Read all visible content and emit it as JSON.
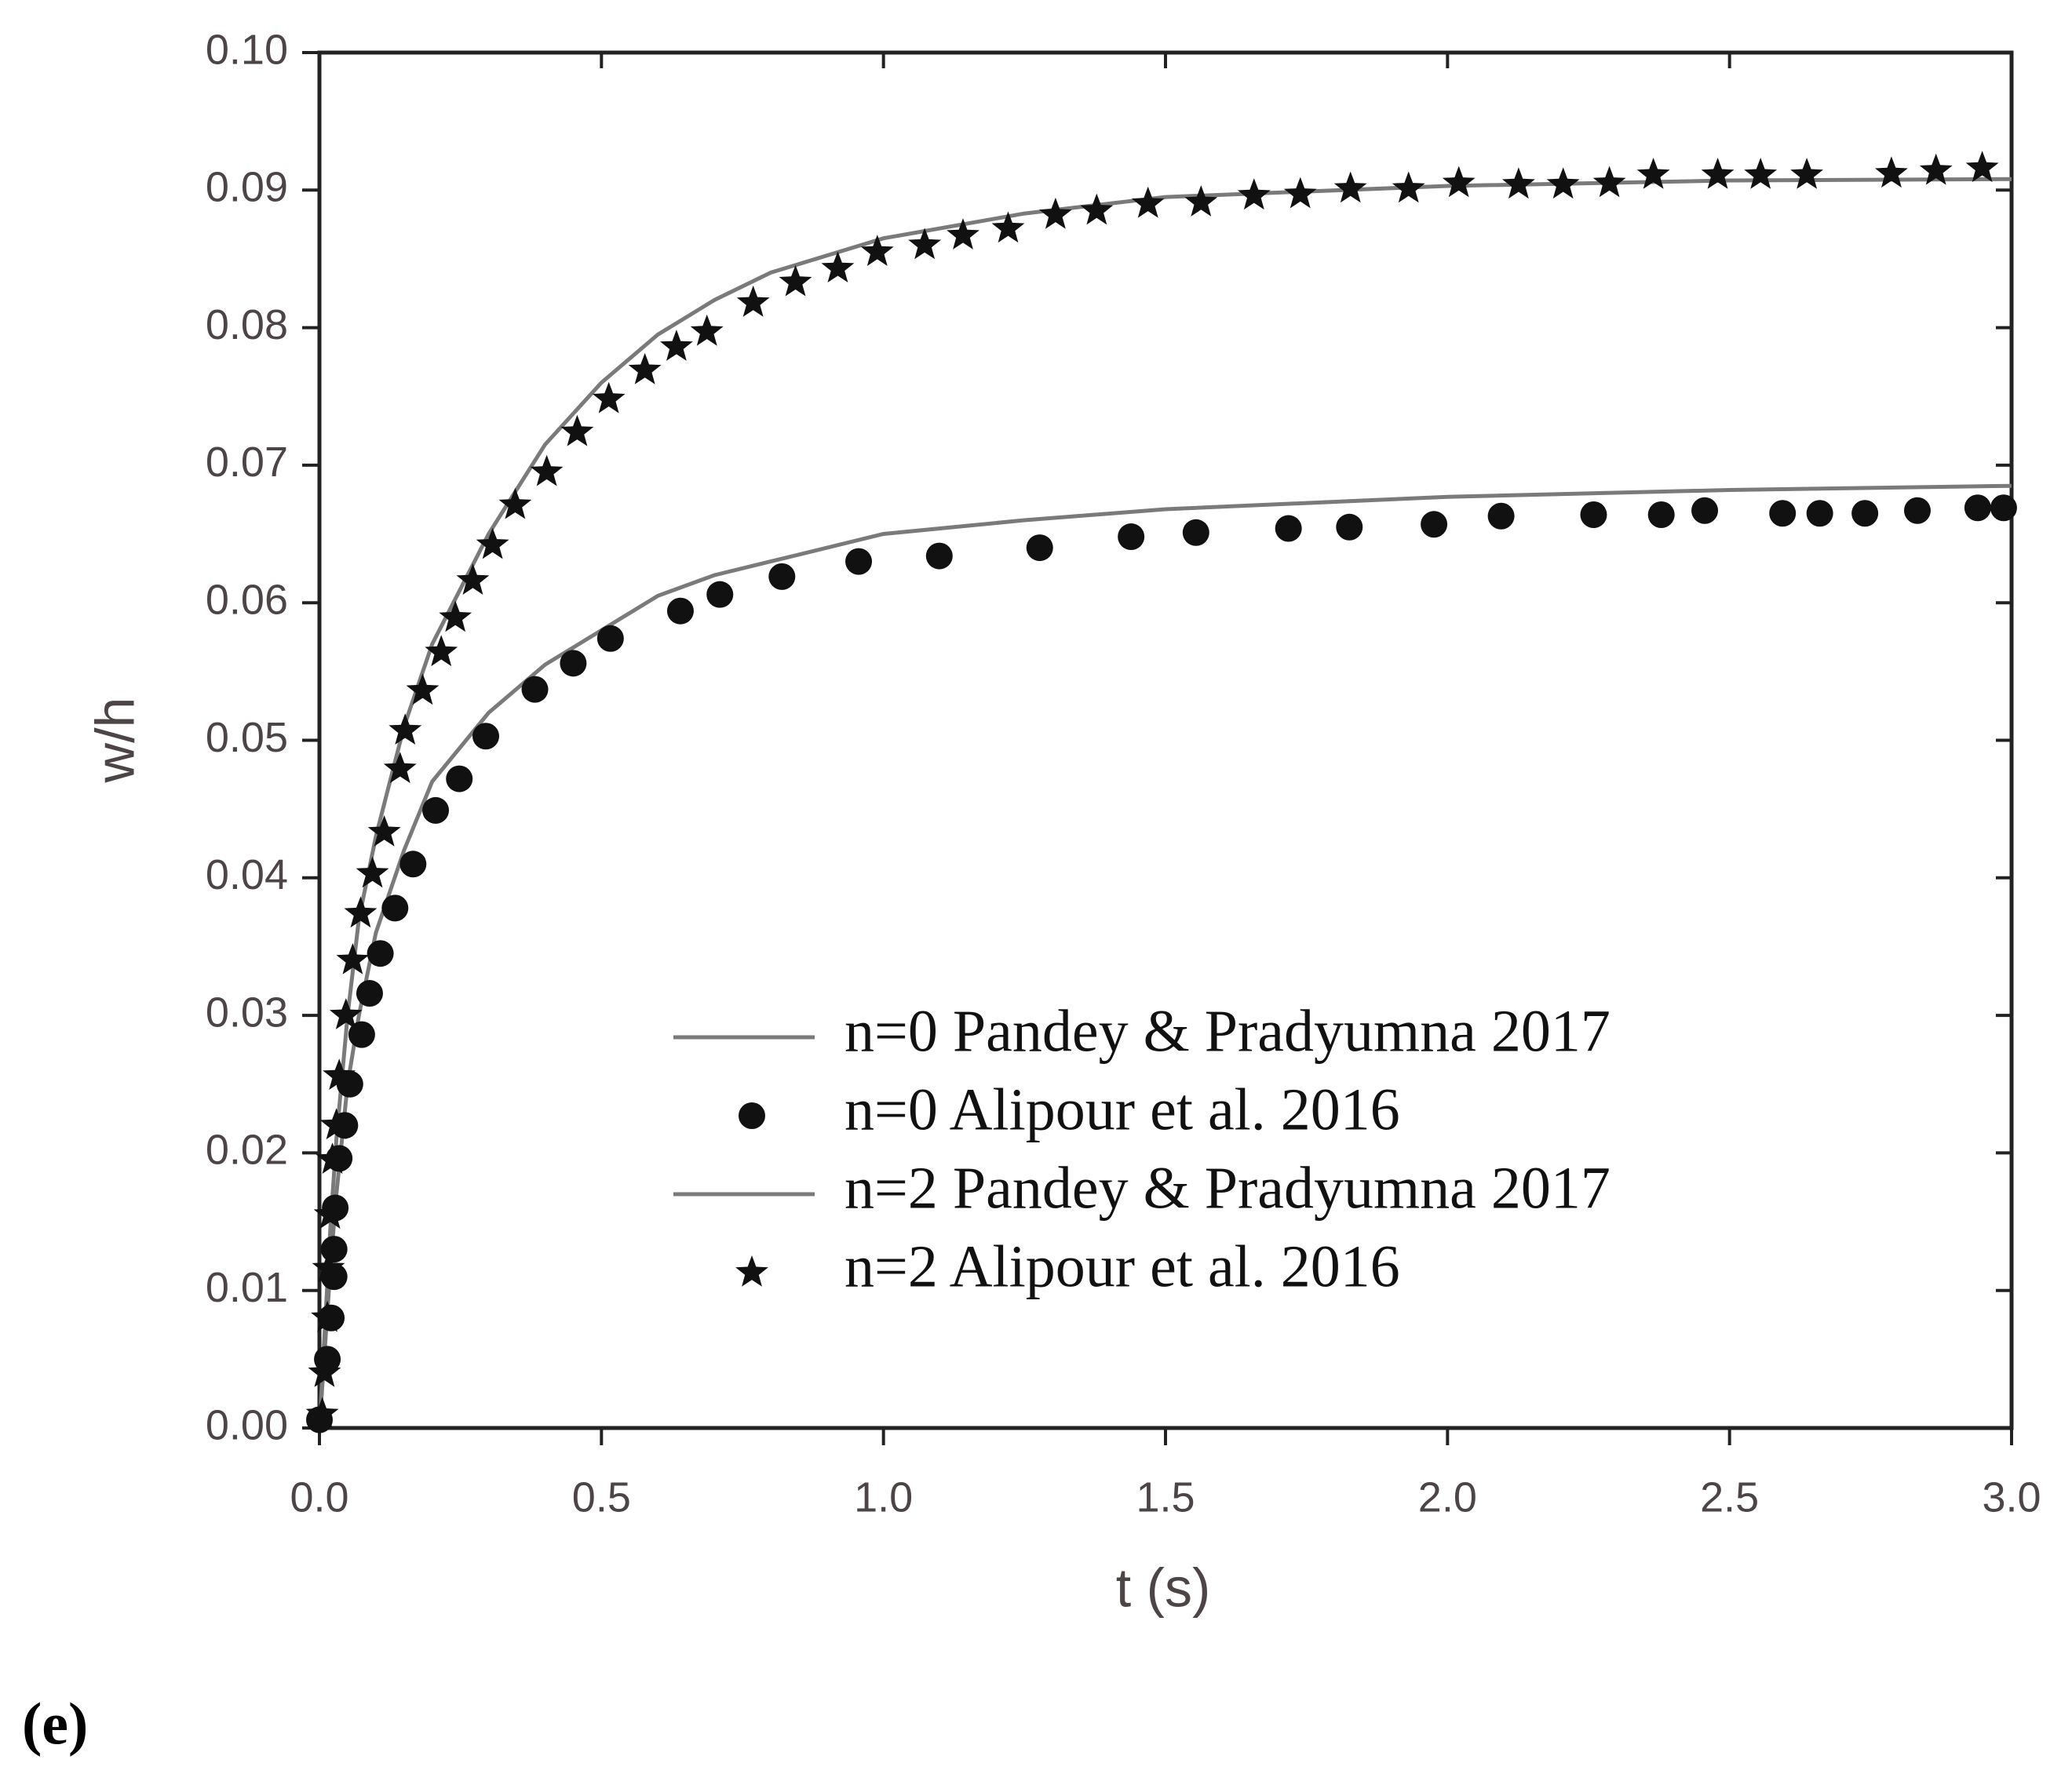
{
  "chart_data": {
    "type": "line",
    "xlabel": "t (s)",
    "ylabel": "w/h",
    "panel_label": "(e)",
    "xlim": [
      0,
      3.0
    ],
    "ylim": [
      0,
      0.1
    ],
    "xticks": [
      {
        "value": 0,
        "label": "0.0"
      },
      0.5,
      {
        "value": 1,
        "label": "1.0"
      },
      1.5,
      {
        "value": 2,
        "label": "2.0"
      },
      2.5,
      {
        "value": 3,
        "label": "3.0"
      }
    ],
    "yticks": [
      {
        "value": 0,
        "label": "0.00"
      },
      0.01,
      0.02,
      0.03,
      0.04,
      0.05,
      0.06,
      0.07,
      0.08,
      0.09,
      {
        "value": 0.1,
        "label": "0.10"
      }
    ],
    "legend": "lower right",
    "series": [
      {
        "name": "n=0 Pandey & Pradyumna 2017",
        "marker": "line",
        "color": "#7a7a7a",
        "x": [
          0,
          0.02,
          0.03,
          0.05,
          0.07,
          0.1,
          0.15,
          0.2,
          0.3,
          0.4,
          0.5,
          0.6,
          0.7,
          0.8,
          1.0,
          1.25,
          1.5,
          2.0,
          2.5,
          3.0
        ],
        "values": [
          0,
          0.012,
          0.017,
          0.025,
          0.03,
          0.036,
          0.042,
          0.047,
          0.052,
          0.0555,
          0.058,
          0.0605,
          0.062,
          0.063,
          0.065,
          0.066,
          0.0668,
          0.0677,
          0.0682,
          0.0685
        ]
      },
      {
        "name": "n=0 Alipour et al. 2016",
        "marker": "circle",
        "color": "#111111",
        "x": [
          0,
          0.014,
          0.021,
          0.026,
          0.026,
          0.028,
          0.035,
          0.045,
          0.054,
          0.075,
          0.089,
          0.108,
          0.134,
          0.166,
          0.206,
          0.248,
          0.295,
          0.382,
          0.45,
          0.516,
          0.64,
          0.71,
          0.82,
          0.956,
          1.099,
          1.277,
          1.439,
          1.554,
          1.718,
          1.826,
          1.976,
          2.095,
          2.259,
          2.379,
          2.456,
          2.594,
          2.66,
          2.74,
          2.833,
          2.94,
          2.986
        ],
        "values": [
          0.0006,
          0.005,
          0.008,
          0.011,
          0.013,
          0.016,
          0.0196,
          0.022,
          0.025,
          0.0286,
          0.0316,
          0.0345,
          0.0378,
          0.041,
          0.0449,
          0.0472,
          0.0503,
          0.0537,
          0.0556,
          0.0574,
          0.0594,
          0.0606,
          0.0619,
          0.063,
          0.0634,
          0.064,
          0.0648,
          0.0651,
          0.0654,
          0.0655,
          0.0657,
          0.0663,
          0.0664,
          0.0664,
          0.0667,
          0.0665,
          0.0665,
          0.0665,
          0.0667,
          0.0669,
          0.0669
        ]
      },
      {
        "name": "n=2 Pandey & Pradyumna 2017",
        "marker": "line",
        "color": "#7a7a7a",
        "x": [
          0,
          0.02,
          0.03,
          0.05,
          0.07,
          0.1,
          0.15,
          0.2,
          0.3,
          0.4,
          0.5,
          0.6,
          0.7,
          0.8,
          1.0,
          1.25,
          1.5,
          2.0,
          2.5,
          3.0
        ],
        "values": [
          0,
          0.015,
          0.021,
          0.03,
          0.037,
          0.043,
          0.051,
          0.057,
          0.065,
          0.0715,
          0.076,
          0.0795,
          0.082,
          0.084,
          0.0865,
          0.0883,
          0.0895,
          0.0903,
          0.0907,
          0.0908
        ]
      },
      {
        "name": "n=2 Alipour et al. 2016",
        "marker": "star",
        "color": "#111111",
        "x": [
          0.005,
          0.009,
          0.014,
          0.016,
          0.019,
          0.023,
          0.03,
          0.035,
          0.047,
          0.059,
          0.073,
          0.094,
          0.115,
          0.143,
          0.152,
          0.183,
          0.216,
          0.241,
          0.272,
          0.307,
          0.347,
          0.403,
          0.457,
          0.513,
          0.577,
          0.633,
          0.687,
          0.769,
          0.844,
          0.919,
          0.989,
          1.073,
          1.141,
          1.221,
          1.305,
          1.378,
          1.469,
          1.563,
          1.657,
          1.739,
          1.828,
          1.931,
          2.02,
          2.126,
          2.205,
          2.287,
          2.365,
          2.479,
          2.555,
          2.637,
          2.787,
          2.866,
          2.948
        ],
        "values": [
          0.001,
          0.004,
          0.008,
          0.0116,
          0.0155,
          0.0195,
          0.022,
          0.0256,
          0.03,
          0.034,
          0.0374,
          0.0403,
          0.0433,
          0.0479,
          0.0507,
          0.0536,
          0.0564,
          0.0589,
          0.0616,
          0.0642,
          0.0671,
          0.0695,
          0.0724,
          0.0748,
          0.0769,
          0.0786,
          0.0797,
          0.0818,
          0.0833,
          0.0843,
          0.0855,
          0.086,
          0.0867,
          0.0872,
          0.0882,
          0.0885,
          0.089,
          0.0891,
          0.0896,
          0.0897,
          0.0901,
          0.0901,
          0.0905,
          0.0904,
          0.0904,
          0.0905,
          0.0911,
          0.0911,
          0.0911,
          0.0911,
          0.0912,
          0.0914,
          0.0916
        ]
      }
    ]
  }
}
